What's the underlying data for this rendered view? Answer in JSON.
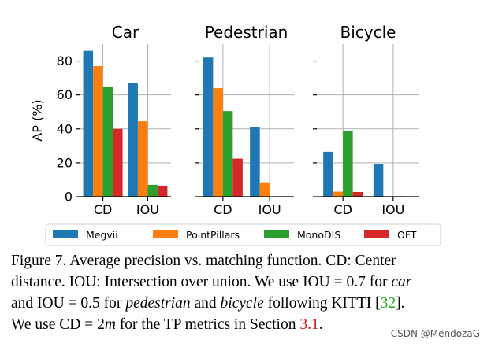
{
  "chart_data": [
    {
      "type": "bar",
      "title": "Car",
      "categories": [
        "CD",
        "IOU"
      ],
      "series": [
        {
          "name": "Megvii",
          "values": [
            86,
            67
          ]
        },
        {
          "name": "PointPillars",
          "values": [
            77,
            44.5
          ]
        },
        {
          "name": "MonoDIS",
          "values": [
            65,
            7
          ]
        },
        {
          "name": "OFT",
          "values": [
            40,
            6.5
          ]
        }
      ],
      "ylabel": "AP (%)",
      "ylim": [
        0,
        90
      ],
      "yticks": [
        0,
        20,
        40,
        60,
        80
      ]
    },
    {
      "type": "bar",
      "title": "Pedestrian",
      "categories": [
        "CD",
        "IOU"
      ],
      "series": [
        {
          "name": "Megvii",
          "values": [
            82,
            41
          ]
        },
        {
          "name": "PointPillars",
          "values": [
            64,
            8.5
          ]
        },
        {
          "name": "MonoDIS",
          "values": [
            50.5,
            0
          ]
        },
        {
          "name": "OFT",
          "values": [
            22.5,
            0.3
          ]
        }
      ],
      "ylim": [
        0,
        90
      ]
    },
    {
      "type": "bar",
      "title": "Bicycle",
      "categories": [
        "CD",
        "IOU"
      ],
      "series": [
        {
          "name": "Megvii",
          "values": [
            26.5,
            19
          ]
        },
        {
          "name": "PointPillars",
          "values": [
            3,
            0.3
          ]
        },
        {
          "name": "MonoDIS",
          "values": [
            38.5,
            0.3
          ]
        },
        {
          "name": "OFT",
          "values": [
            2.8,
            0.2
          ]
        }
      ],
      "ylim": [
        0,
        90
      ]
    }
  ],
  "legend": [
    {
      "name": "Megvii",
      "color": "#1f77b4"
    },
    {
      "name": "PointPillars",
      "color": "#ff7f0e"
    },
    {
      "name": "MonoDIS",
      "color": "#2ca02c"
    },
    {
      "name": "OFT",
      "color": "#d62728"
    }
  ],
  "caption": {
    "l1": "Figure 7.   Average precision vs. matching function. CD: Center",
    "l2": "distance. IOU: Intersection over union. We use IOU = 0.7 for ",
    "l2_em": "car",
    "l3a": "and IOU = 0.5 for ",
    "l3_em1": "pedestrian",
    "l3b": " and ",
    "l3_em2": "bicycle",
    "l3c": " following KITTI [",
    "l3_ref": "32",
    "l3d": "].",
    "l4a": "We use CD = 2",
    "l4_em": "m",
    "l4b": " for the TP metrics in Section ",
    "l4_ref": "3.1",
    "l4c": "."
  },
  "watermark": "CSDN @MendozaG"
}
